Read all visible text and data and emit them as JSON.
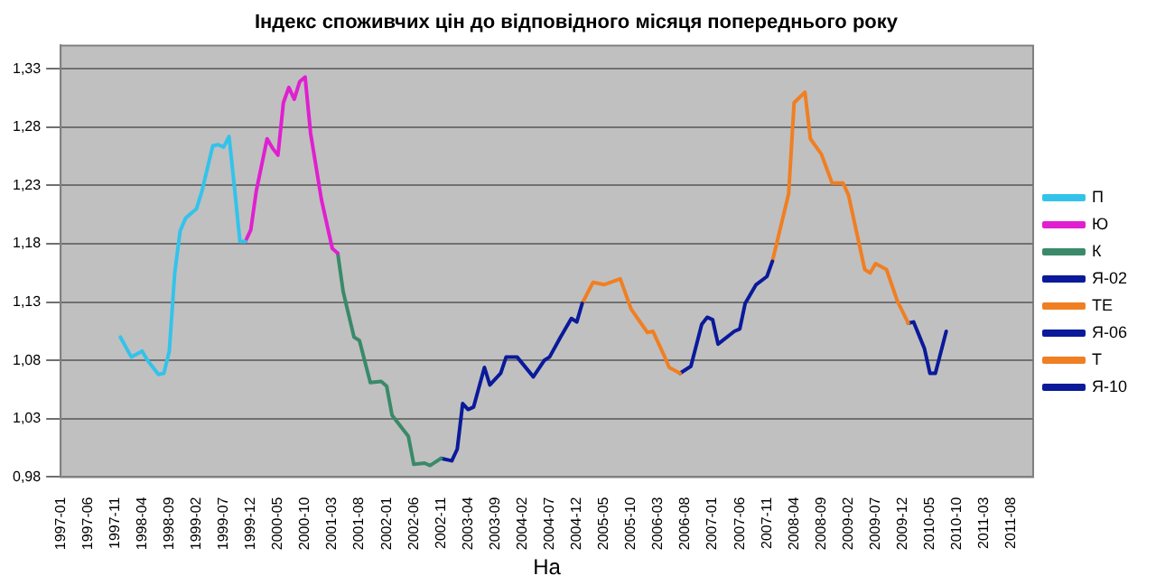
{
  "chart_data": {
    "type": "line",
    "title": "Індекс споживчих цін до відповідного місяця попереднього року",
    "xlabel": "На",
    "xlim": [
      "1997-01",
      "2011-12"
    ],
    "xticks": [
      "1997-01",
      "1997-06",
      "1997-11",
      "1998-04",
      "1998-09",
      "1999-02",
      "1999-07",
      "1999-12",
      "2000-05",
      "2000-10",
      "2001-03",
      "2001-08",
      "2002-01",
      "2002-06",
      "2002-11",
      "2003-04",
      "2003-09",
      "2004-02",
      "2004-07",
      "2004-12",
      "2005-05",
      "2005-10",
      "2006-03",
      "2006-08",
      "2007-01",
      "2007-06",
      "2007-11",
      "2008-04",
      "2008-09",
      "2009-02",
      "2009-07",
      "2009-12",
      "2010-05",
      "2010-10",
      "2011-03",
      "2011-08"
    ],
    "ylim": [
      0.98,
      1.35
    ],
    "yticks": [
      {
        "value": 0.98,
        "label": "0,98"
      },
      {
        "value": 1.03,
        "label": "1,03"
      },
      {
        "value": 1.08,
        "label": "1,08"
      },
      {
        "value": 1.13,
        "label": "1,13"
      },
      {
        "value": 1.18,
        "label": "1,18"
      },
      {
        "value": 1.23,
        "label": "1,23"
      },
      {
        "value": 1.28,
        "label": "1,28"
      },
      {
        "value": 1.33,
        "label": "1,33"
      }
    ],
    "grid": "y",
    "legend": "right",
    "marker": "none",
    "line_style": "solid",
    "series": [
      {
        "name": "П",
        "color": "#33c3ea",
        "x": [
          "1997-12",
          "1998-02",
          "1998-04",
          "1998-05",
          "1998-07",
          "1998-08",
          "1998-09",
          "1998-10",
          "1998-11",
          "1998-12",
          "1999-02",
          "1999-03",
          "1999-05",
          "1999-06",
          "1999-07",
          "1999-08",
          "1999-09",
          "1999-10",
          "1999-11"
        ],
        "values": [
          1.1,
          1.083,
          1.088,
          1.08,
          1.068,
          1.069,
          1.088,
          1.155,
          1.191,
          1.202,
          1.21,
          1.225,
          1.264,
          1.265,
          1.263,
          1.272,
          1.228,
          1.182,
          1.182
        ]
      },
      {
        "name": "Ю",
        "color": "#e020d0",
        "x": [
          "1999-11",
          "1999-12",
          "2000-01",
          "2000-03",
          "2000-04",
          "2000-05",
          "2000-06",
          "2000-07",
          "2000-08",
          "2000-09",
          "2000-10",
          "2000-11",
          "2001-01",
          "2001-03",
          "2001-04"
        ],
        "values": [
          1.182,
          1.192,
          1.225,
          1.27,
          1.262,
          1.256,
          1.301,
          1.314,
          1.304,
          1.319,
          1.323,
          1.275,
          1.218,
          1.176,
          1.172
        ]
      },
      {
        "name": "К",
        "color": "#3a8a6a",
        "x": [
          "2001-04",
          "2001-05",
          "2001-07",
          "2001-08",
          "2001-10",
          "2001-12",
          "2002-01",
          "2002-02",
          "2002-04",
          "2002-05",
          "2002-06",
          "2002-08",
          "2002-09",
          "2002-11"
        ],
        "values": [
          1.172,
          1.139,
          1.1,
          1.097,
          1.061,
          1.062,
          1.058,
          1.033,
          1.021,
          1.015,
          0.991,
          0.992,
          0.99,
          0.996
        ]
      },
      {
        "name": "Я-02",
        "color": "#0a1a9a",
        "x": [
          "2002-11",
          "2003-01",
          "2003-02",
          "2003-03",
          "2003-04",
          "2003-05",
          "2003-07",
          "2003-08",
          "2003-10",
          "2003-11",
          "2004-01",
          "2004-04",
          "2004-06",
          "2004-07",
          "2004-09",
          "2004-11",
          "2004-12",
          "2005-01"
        ],
        "values": [
          0.996,
          0.994,
          1.004,
          1.043,
          1.038,
          1.04,
          1.074,
          1.059,
          1.069,
          1.083,
          1.083,
          1.066,
          1.08,
          1.083,
          1.1,
          1.116,
          1.113,
          1.129
        ]
      },
      {
        "name": "ТЕ",
        "color": "#f07f22",
        "x": [
          "2005-01",
          "2005-03",
          "2005-05",
          "2005-08",
          "2005-10",
          "2006-01",
          "2006-02",
          "2006-04",
          "2006-05",
          "2006-07"
        ],
        "values": [
          1.129,
          1.147,
          1.145,
          1.15,
          1.124,
          1.104,
          1.105,
          1.085,
          1.074,
          1.069
        ]
      },
      {
        "name": "Я-06",
        "color": "#0a1a9a",
        "x": [
          "2006-07",
          "2006-09",
          "2006-11",
          "2006-12",
          "2007-01",
          "2007-02",
          "2007-05",
          "2007-06",
          "2007-07",
          "2007-09",
          "2007-11",
          "2007-12"
        ],
        "values": [
          1.069,
          1.075,
          1.111,
          1.117,
          1.115,
          1.094,
          1.105,
          1.107,
          1.129,
          1.145,
          1.152,
          1.165
        ]
      },
      {
        "name": "Т",
        "color": "#f07f22",
        "x": [
          "2007-12",
          "2008-03",
          "2008-04",
          "2008-06",
          "2008-07",
          "2008-09",
          "2008-11",
          "2009-01",
          "2009-02",
          "2009-05",
          "2009-06",
          "2009-07",
          "2009-09",
          "2009-11",
          "2010-01"
        ],
        "values": [
          1.165,
          1.223,
          1.301,
          1.31,
          1.27,
          1.257,
          1.232,
          1.232,
          1.222,
          1.158,
          1.155,
          1.163,
          1.158,
          1.131,
          1.112
        ]
      },
      {
        "name": "Я-10",
        "color": "#0a1a9a",
        "x": [
          "2010-01",
          "2010-02",
          "2010-04",
          "2010-05",
          "2010-06",
          "2010-08"
        ],
        "values": [
          1.112,
          1.113,
          1.09,
          1.069,
          1.069,
          1.105
        ]
      }
    ]
  }
}
